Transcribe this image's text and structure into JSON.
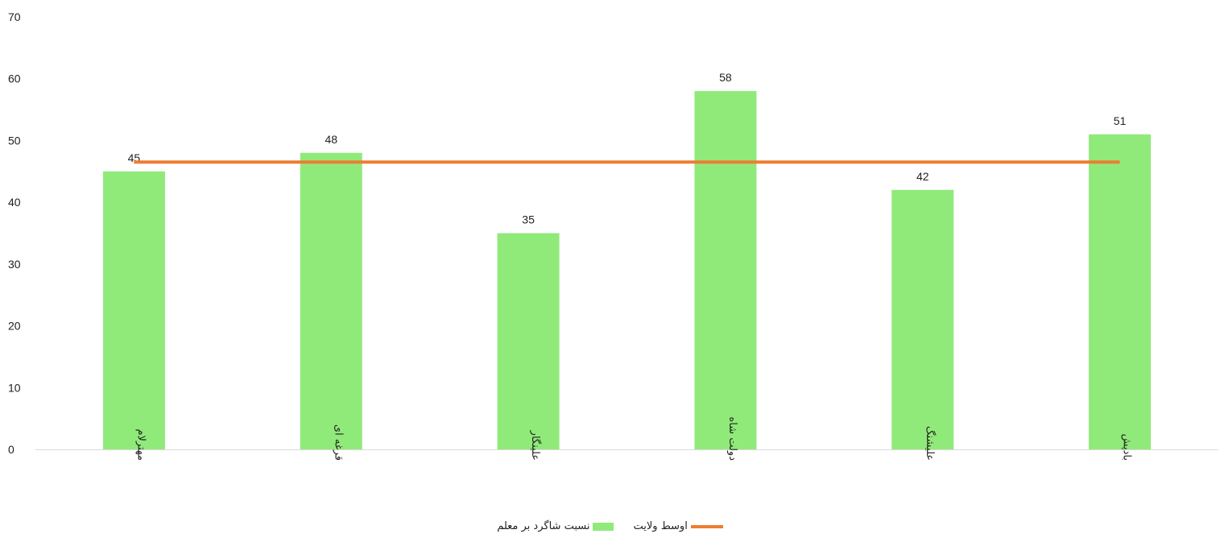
{
  "chart_data": {
    "type": "bar",
    "title": "",
    "xlabel": "",
    "ylabel": "",
    "categories": [
      "مهترلام",
      "قرغه ای",
      "علینگار",
      "دولت شاه",
      "علیشنگ",
      "بادپش"
    ],
    "series": [
      {
        "name": "نسبت شاگرد بر معلم",
        "type": "bar",
        "color": "#90ea7a",
        "values": [
          45,
          48,
          35,
          58,
          42,
          51
        ],
        "labels": [
          "45",
          "48",
          "35",
          "58",
          "42",
          "51"
        ]
      },
      {
        "name": "اوسط ولایت",
        "type": "line",
        "color": "#ed7d31",
        "values": [
          46.5,
          46.5,
          46.5,
          46.5,
          46.5,
          46.5
        ]
      }
    ],
    "ylim": [
      0,
      70
    ],
    "yticks": [
      0,
      10,
      20,
      30,
      40,
      50,
      60,
      70
    ],
    "grid": false,
    "legend": "bottom"
  }
}
